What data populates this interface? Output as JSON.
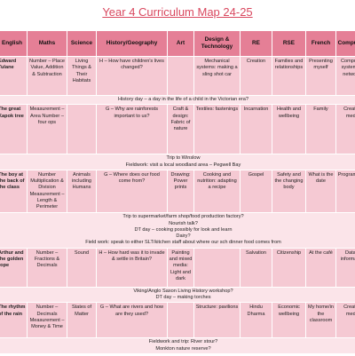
{
  "header": {
    "title": "Year 4 Curriculum Map 24-25"
  },
  "table": {
    "headers": [
      "English",
      "Maths",
      "Science",
      "History/Geography",
      "Art",
      "Design & Technology",
      "RE",
      "RSE",
      "French",
      "Computing"
    ],
    "rows": [
      {
        "cells": [
          "Edward Tulane",
          "Number – Place Value, Addition & Subtraction",
          "Living Things & Their Habitats",
          "H – How have children's lives changed?",
          null,
          "Mechanical systems: making a sling shot car",
          "Creation",
          "Families and relationships",
          "Presenting myself",
          "Computing systems & networks"
        ]
      },
      {
        "notes": [
          "History day – a day in the life of a child in the Victorian era?"
        ]
      },
      {
        "cells": [
          "The great Kapok tree",
          "Measurement – Area Number – four ops",
          null,
          "G – Why are rainforests important to us?",
          "Craft & design: Fabric of nature",
          "Textiles: fastenings",
          "Incarnation",
          "Health and wellbeing",
          "Family",
          "Creative media"
        ]
      },
      {
        "notes": [
          "Trip to Winslow",
          "Fieldwork: visit a local woodland area – Pegwell Bay"
        ]
      },
      {
        "cells": [
          "The boy at the back of the class",
          "Number Multiplication & Division Measurement – Length & Perimeter",
          "Animals including Humans",
          "G – Where does our food come from?",
          "Drawing: Power prints",
          "Cooking and nutrition: adapting a recipe",
          "Gospel",
          "Safety and the changing body",
          "What is the date",
          "Programming"
        ]
      },
      {
        "notes": [
          "Trip to supermarket/farm shop/food production factory?",
          "Nourish talk?",
          "DT day – cooking possibly for look and learn",
          "Dairy?",
          "Field work: speak to either SLT/kitchen staff about where our sch dinner food comes from"
        ]
      },
      {
        "cells": [
          "Arthur and the golden rope",
          "Number – Fractions & Decimals",
          "Sound",
          "H – How hard was it to invade & settle in Britain?",
          "Painting and mixed media: Light and dark",
          null,
          "Salvation",
          "Citizenship",
          "At the café",
          "Data & information"
        ]
      },
      {
        "notes": [
          "Viking/Anglo Saxon Living History workshop?",
          "DT day – making torches"
        ]
      },
      {
        "cells": [
          "The rhythm of the rain",
          "Number – Decimals Measurement – Money & Time",
          "States of Matter",
          "G – What are rivers and how are they used?",
          null,
          "Structure: pavilions",
          "Hindu Dharma",
          "Economic wellbeing",
          "My home/in the classroom",
          "Creative media"
        ]
      },
      {
        "notes": [
          "Fieldwork and trip: River stour?",
          "Monkton nature reserve?"
        ]
      }
    ]
  }
}
